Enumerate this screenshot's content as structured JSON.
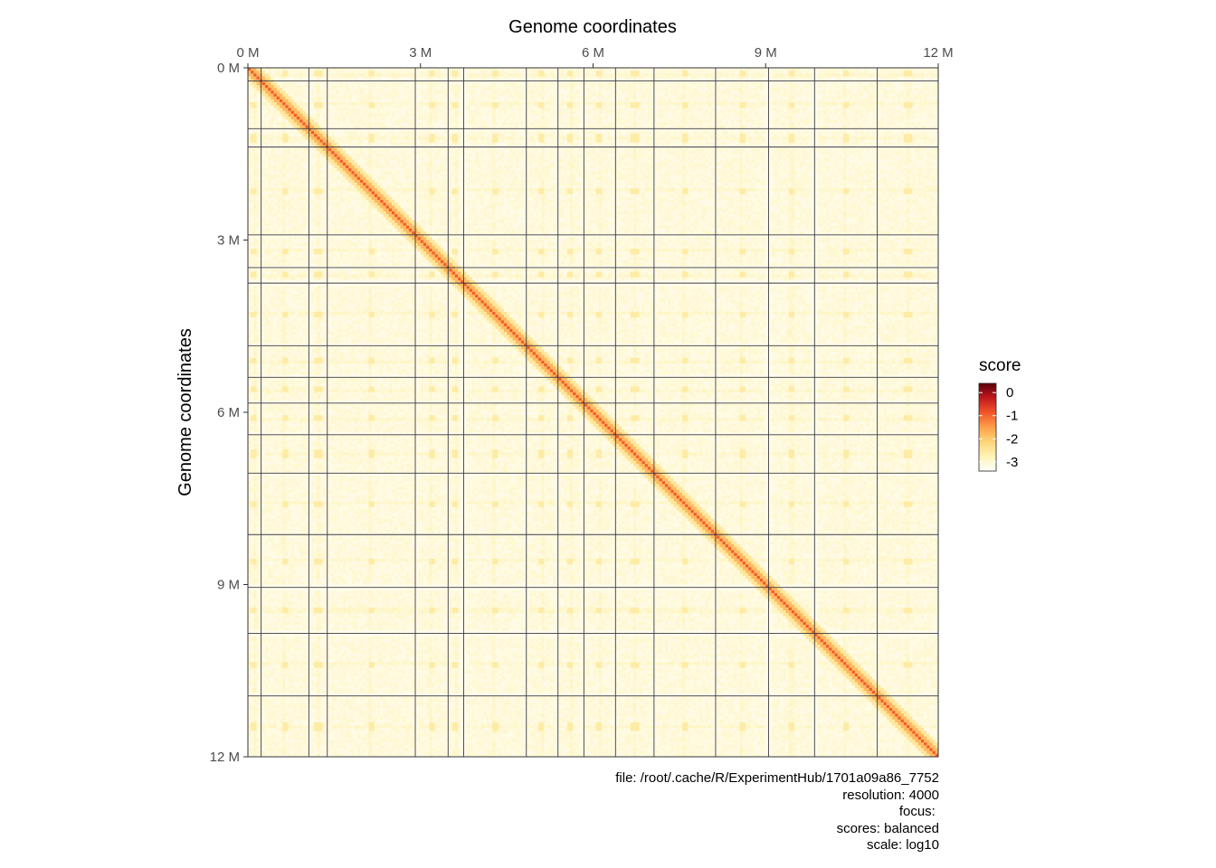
{
  "chart_data": {
    "type": "heatmap",
    "title": "",
    "x_axis": {
      "label": "Genome coordinates",
      "position": "top",
      "range": [
        0,
        12000000
      ],
      "ticks": [
        {
          "value": 0,
          "label": "0 M"
        },
        {
          "value": 3000000,
          "label": "3 M"
        },
        {
          "value": 6000000,
          "label": "6 M"
        },
        {
          "value": 9000000,
          "label": "9 M"
        },
        {
          "value": 12000000,
          "label": "12 M"
        }
      ]
    },
    "y_axis": {
      "label": "Genome coordinates",
      "range": [
        0,
        12000000
      ],
      "reversed": true,
      "ticks": [
        {
          "value": 0,
          "label": "0 M"
        },
        {
          "value": 3000000,
          "label": "3 M"
        },
        {
          "value": 6000000,
          "label": "6 M"
        },
        {
          "value": 9000000,
          "label": "9 M"
        },
        {
          "value": 12000000,
          "label": "12 M"
        }
      ]
    },
    "chromosome_boundaries": [
      230000,
      1060000,
      1380000,
      2910000,
      3480000,
      3750000,
      4840000,
      5390000,
      5840000,
      6390000,
      7060000,
      8130000,
      9050000,
      9850000,
      10940000
    ],
    "value_scale": "log10",
    "color_legend": {
      "title": "score",
      "placement": "right",
      "range": [
        -3.4,
        0.4
      ],
      "ticks": [
        {
          "value": 0,
          "label": "0"
        },
        {
          "value": -1,
          "label": "-1"
        },
        {
          "value": -2,
          "label": "-2"
        },
        {
          "value": -3,
          "label": "-3"
        }
      ],
      "colors": [
        "#ffffff",
        "#fef3b5",
        "#fed57a",
        "#fda04a",
        "#f2562a",
        "#c2181e",
        "#5a0008"
      ]
    },
    "background_value": -3.1,
    "diagonal_value": -0.9
  },
  "caption": {
    "file": "file: /root/.cache/R/ExperimentHub/1701a09a86_7752",
    "resolution": "resolution: 4000",
    "focus": "focus: ",
    "scores": "scores: balanced",
    "scale": "scale: log10"
  }
}
